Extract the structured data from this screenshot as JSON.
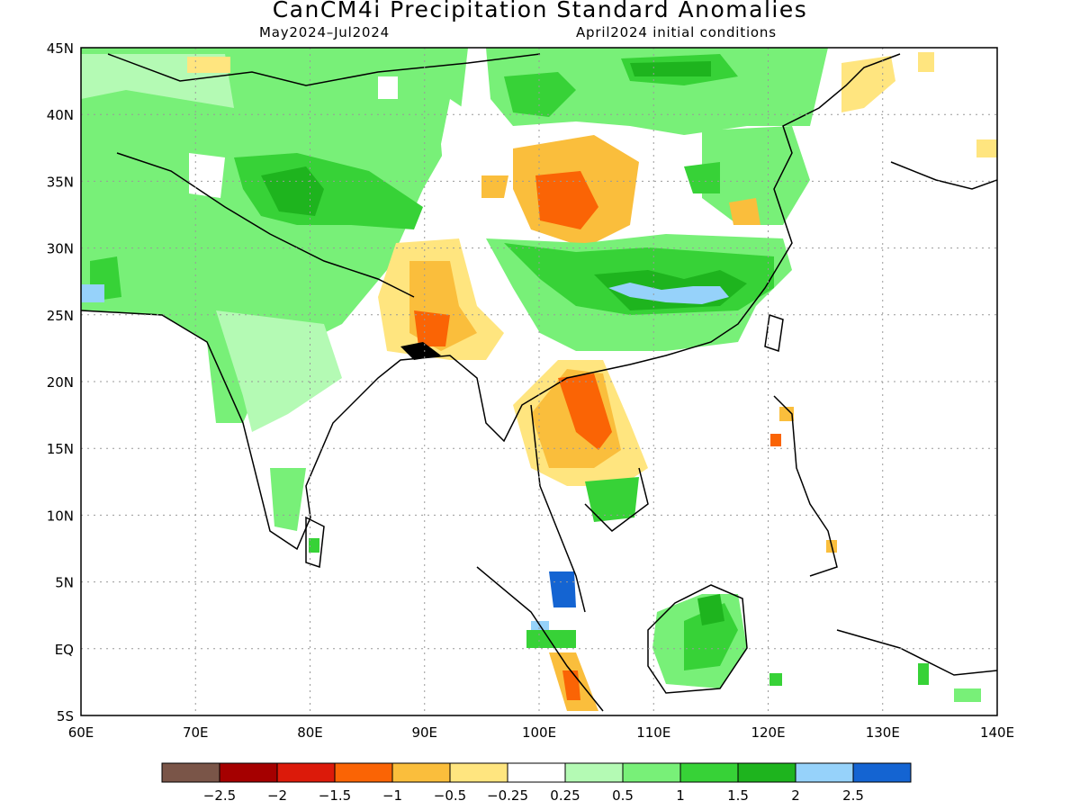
{
  "title": "CanCM4i Precipitation Standard Anomalies",
  "period": "May2024–Jul2024",
  "init": "April2024 initial conditions",
  "map": {
    "lon_range": [
      60,
      140
    ],
    "lat_range": [
      -5,
      45
    ],
    "lon_ticks": [
      "60E",
      "70E",
      "80E",
      "90E",
      "100E",
      "110E",
      "120E",
      "130E",
      "140E"
    ],
    "lat_ticks": [
      "45N",
      "40N",
      "35N",
      "30N",
      "25N",
      "20N",
      "15N",
      "10N",
      "5N",
      "EQ",
      "5S"
    ],
    "gridlines": "dotted"
  },
  "colorbar": {
    "colors": [
      "#7a5548",
      "#a50000",
      "#dc1a0a",
      "#fa6405",
      "#fabe3c",
      "#ffe57f",
      "#ffffff",
      "#b4fab4",
      "#78f078",
      "#37d237",
      "#1eb41e",
      "#96d2fa",
      "#1464d2"
    ],
    "labels": [
      "-2.5",
      "-2",
      "-1.5",
      "-1",
      "-0.5",
      "-0.25",
      "0.25",
      "0.5",
      "1",
      "1.5",
      "2",
      "2.5"
    ]
  }
}
